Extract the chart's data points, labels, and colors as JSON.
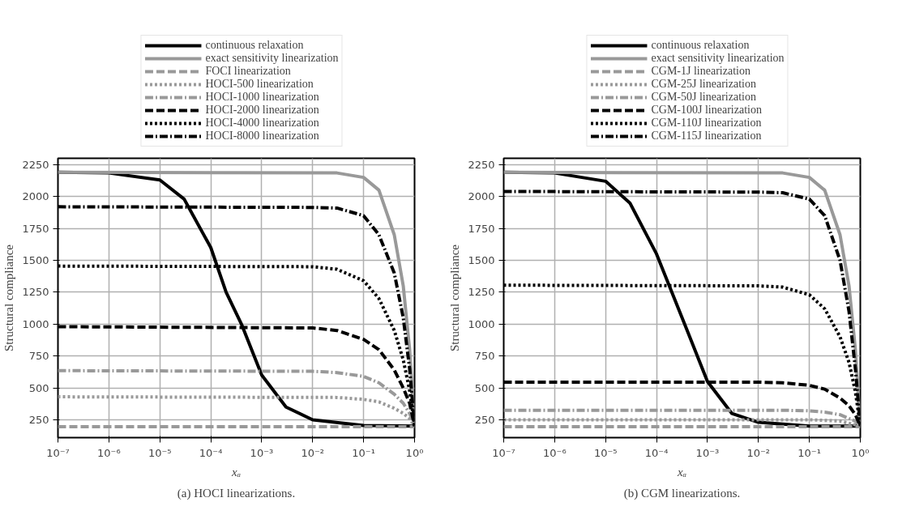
{
  "chart_data": [
    {
      "type": "line",
      "xlabel": "xₐ",
      "ylabel": "Structural compliance",
      "annotations": [
        "(a) HOCI linearizations."
      ],
      "log": "x",
      "grid": true,
      "legend": "top",
      "xlim": [
        1e-07,
        1
      ],
      "ylim": [
        110,
        2300
      ],
      "xticks": [
        {
          "value": 1e-07,
          "label": "10⁻⁷"
        },
        {
          "value": 1e-06,
          "label": "10⁻⁶"
        },
        {
          "value": 1e-05,
          "label": "10⁻⁵"
        },
        {
          "value": 0.0001,
          "label": "10⁻⁴"
        },
        {
          "value": 0.001,
          "label": "10⁻³"
        },
        {
          "value": 0.01,
          "label": "10⁻²"
        },
        {
          "value": 0.1,
          "label": "10⁻¹"
        },
        {
          "value": 1,
          "label": "10⁰"
        }
      ],
      "yticks": [
        250,
        500,
        750,
        1000,
        1250,
        1500,
        1750,
        2000,
        2250
      ],
      "series": [
        {
          "name": "continuous relaxation",
          "color": "#000000",
          "line_style": "solid",
          "x": [
            1e-07,
            1e-06,
            1e-05,
            3e-05,
            0.0001,
            0.0002,
            0.0004,
            0.001,
            0.003,
            0.01,
            0.1,
            1
          ],
          "values": [
            2190,
            2185,
            2130,
            1980,
            1600,
            1250,
            1000,
            600,
            350,
            250,
            205,
            200
          ]
        },
        {
          "name": "exact sensitivity linearization",
          "color": "#999999",
          "line_style": "solid",
          "x": [
            1e-07,
            0.03,
            0.1,
            0.2,
            0.4,
            0.6,
            0.8,
            1
          ],
          "values": [
            2190,
            2185,
            2150,
            2050,
            1700,
            1300,
            800,
            200
          ]
        },
        {
          "name": "FOCI linearization",
          "color": "#999999",
          "line_style": "dashed",
          "x": [
            1e-07,
            1
          ],
          "values": [
            195,
            195
          ]
        },
        {
          "name": "HOCI-500 linearization",
          "color": "#999999",
          "line_style": "dotted",
          "x": [
            1e-07,
            0.03,
            0.1,
            0.2,
            0.4,
            0.6,
            0.8,
            1
          ],
          "values": [
            430,
            425,
            410,
            390,
            340,
            300,
            260,
            200
          ]
        },
        {
          "name": "HOCI-1000 linearization",
          "color": "#999999",
          "line_style": "dashdot",
          "x": [
            1e-07,
            0.01,
            0.03,
            0.1,
            0.2,
            0.4,
            0.6,
            0.8,
            1
          ],
          "values": [
            635,
            630,
            620,
            590,
            540,
            450,
            380,
            300,
            200
          ]
        },
        {
          "name": "HOCI-2000 linearization",
          "color": "#000000",
          "line_style": "dashed",
          "x": [
            1e-07,
            0.01,
            0.03,
            0.1,
            0.2,
            0.4,
            0.6,
            0.8,
            1
          ],
          "values": [
            980,
            970,
            950,
            880,
            800,
            640,
            500,
            380,
            200
          ]
        },
        {
          "name": "HOCI-4000 linearization",
          "color": "#000000",
          "line_style": "dotted",
          "x": [
            1e-07,
            0.01,
            0.03,
            0.1,
            0.2,
            0.4,
            0.6,
            0.8,
            1
          ],
          "values": [
            1455,
            1450,
            1430,
            1340,
            1200,
            950,
            720,
            480,
            200
          ]
        },
        {
          "name": "HOCI-8000 linearization",
          "color": "#000000",
          "line_style": "dashdot",
          "x": [
            1e-07,
            0.01,
            0.03,
            0.1,
            0.2,
            0.4,
            0.6,
            0.8,
            1
          ],
          "values": [
            1920,
            1915,
            1910,
            1850,
            1700,
            1400,
            1050,
            650,
            200
          ]
        }
      ]
    },
    {
      "type": "line",
      "xlabel": "xₐ",
      "ylabel": "Structural compliance",
      "annotations": [
        "(b) CGM linearizations."
      ],
      "log": "x",
      "grid": true,
      "legend": "top",
      "xlim": [
        1e-07,
        1
      ],
      "ylim": [
        110,
        2300
      ],
      "xticks": [
        {
          "value": 1e-07,
          "label": "10⁻⁷"
        },
        {
          "value": 1e-06,
          "label": "10⁻⁶"
        },
        {
          "value": 1e-05,
          "label": "10⁻⁵"
        },
        {
          "value": 0.0001,
          "label": "10⁻⁴"
        },
        {
          "value": 0.001,
          "label": "10⁻³"
        },
        {
          "value": 0.01,
          "label": "10⁻²"
        },
        {
          "value": 0.1,
          "label": "10⁻¹"
        },
        {
          "value": 1,
          "label": "10⁰"
        }
      ],
      "yticks": [
        250,
        500,
        750,
        1000,
        1250,
        1500,
        1750,
        2000,
        2250
      ],
      "series": [
        {
          "name": "continuous relaxation",
          "color": "#000000",
          "line_style": "solid",
          "x": [
            1e-07,
            1e-06,
            1e-05,
            3e-05,
            0.0001,
            0.0002,
            0.0004,
            0.001,
            0.003,
            0.01,
            0.1,
            1
          ],
          "values": [
            2190,
            2185,
            2120,
            1950,
            1550,
            1250,
            950,
            550,
            300,
            230,
            200,
            200
          ]
        },
        {
          "name": "exact sensitivity linearization",
          "color": "#999999",
          "line_style": "solid",
          "x": [
            1e-07,
            0.03,
            0.1,
            0.2,
            0.4,
            0.6,
            0.8,
            1
          ],
          "values": [
            2190,
            2185,
            2150,
            2050,
            1700,
            1300,
            800,
            200
          ]
        },
        {
          "name": "CGM-1J linearization",
          "color": "#999999",
          "line_style": "dashed",
          "x": [
            1e-07,
            1
          ],
          "values": [
            195,
            195
          ]
        },
        {
          "name": "CGM-25J linearization",
          "color": "#999999",
          "line_style": "dotted",
          "x": [
            1e-07,
            0.1,
            0.4,
            1
          ],
          "values": [
            250,
            250,
            240,
            200
          ]
        },
        {
          "name": "CGM-50J linearization",
          "color": "#999999",
          "line_style": "dashdot",
          "x": [
            1e-07,
            0.03,
            0.1,
            0.2,
            0.4,
            0.6,
            0.8,
            1
          ],
          "values": [
            325,
            325,
            320,
            310,
            290,
            260,
            240,
            200
          ]
        },
        {
          "name": "CGM-100J linearization",
          "color": "#000000",
          "line_style": "dashed",
          "x": [
            1e-07,
            0.01,
            0.03,
            0.1,
            0.2,
            0.4,
            0.6,
            0.8,
            1
          ],
          "values": [
            545,
            545,
            540,
            520,
            490,
            420,
            360,
            290,
            200
          ]
        },
        {
          "name": "CGM-110J linearization",
          "color": "#000000",
          "line_style": "dotted",
          "x": [
            1e-07,
            0.01,
            0.03,
            0.1,
            0.2,
            0.4,
            0.6,
            0.8,
            1
          ],
          "values": [
            1305,
            1300,
            1290,
            1230,
            1120,
            900,
            700,
            470,
            200
          ]
        },
        {
          "name": "CGM-115J linearization",
          "color": "#000000",
          "line_style": "dashdot",
          "x": [
            1e-07,
            0.01,
            0.03,
            0.1,
            0.2,
            0.4,
            0.6,
            0.8,
            1
          ],
          "values": [
            2040,
            2035,
            2030,
            1980,
            1850,
            1500,
            1100,
            650,
            200
          ]
        }
      ]
    }
  ]
}
